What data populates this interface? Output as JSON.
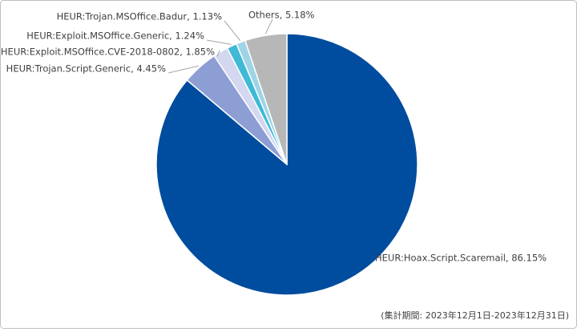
{
  "chart_data": {
    "type": "pie",
    "value_labels": [
      "HEUR:Hoax.Script.Scaremail, 86.15%",
      "HEUR:Trojan.Script.Generic, 4.45%",
      "HEUR:Exploit.MSOffice.CVE-2018-0802, 1.85%",
      "HEUR:Exploit.MSOffice.Generic, 1.24%",
      "HEUR:Trojan.MSOffice.Badur, 1.13%",
      "Others, 5.18%"
    ],
    "values": [
      86.15,
      4.45,
      1.85,
      1.24,
      1.13,
      5.18
    ],
    "colors": [
      "#004c9e",
      "#8d9ed5",
      "#d3d7ef",
      "#3fb9d6",
      "#9dd5e6",
      "#b7b7b7"
    ],
    "note": "(集計期間: 2023年12月1日-2023年12月31日)"
  }
}
